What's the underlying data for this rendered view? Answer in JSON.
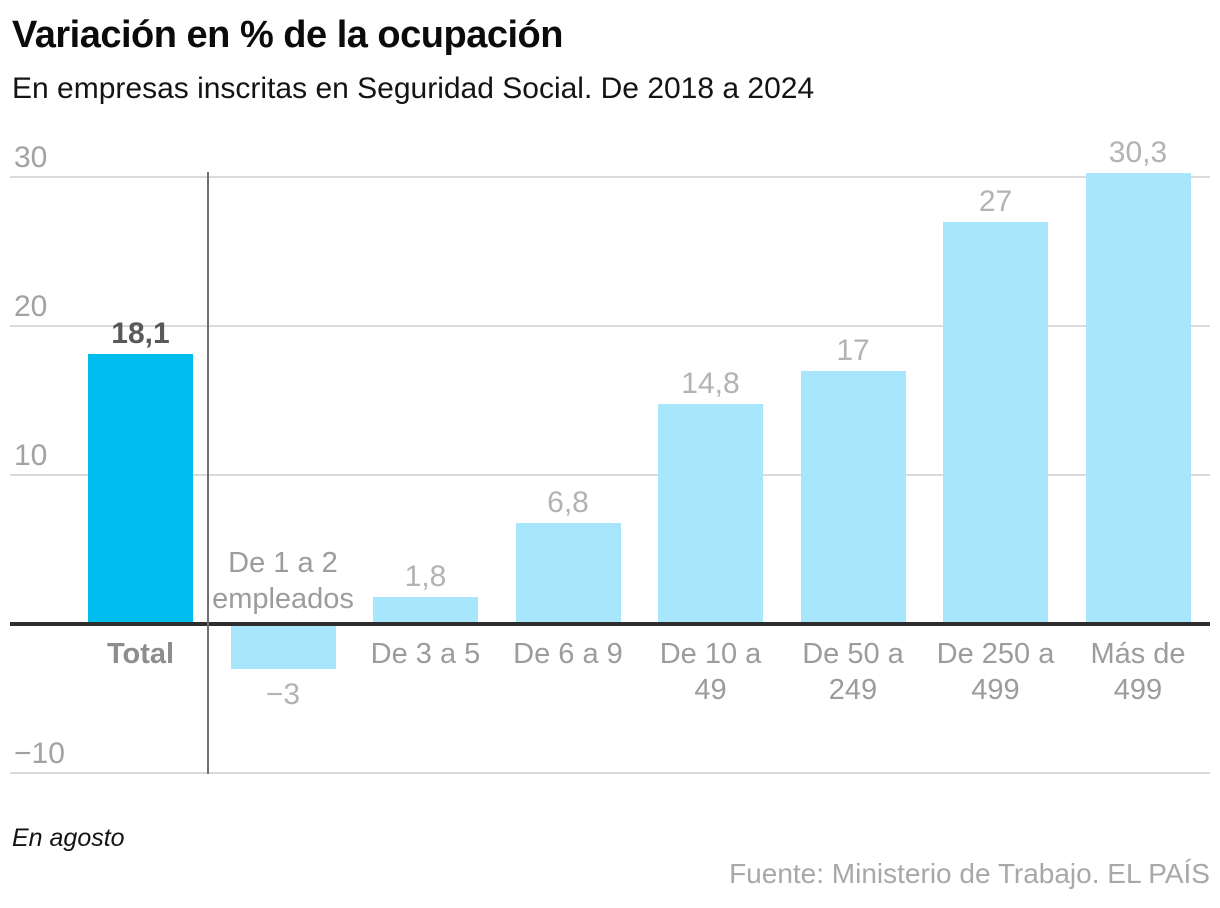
{
  "header": {
    "title": "Variación en % de la ocupación",
    "subtitle": "En empresas inscritas en Seguridad Social. De 2018 a 2024"
  },
  "footer": {
    "note": "En agosto",
    "source": "Fuente: Ministerio de Trabajo. EL PAÍS"
  },
  "chart_data": {
    "type": "bar",
    "title": "Variación en % de la ocupación",
    "subtitle": "En empresas inscritas en Seguridad Social. De 2018 a 2024",
    "categories": [
      "Total",
      "De 1 a 2 empleados",
      "De 3 a 5",
      "De 6 a 9",
      "De 10 a 49",
      "De 50 a 249",
      "De 250 a 499",
      "Más de 499"
    ],
    "category_lines": [
      [
        "Total"
      ],
      [
        "De 1 a 2",
        "empleados"
      ],
      [
        "De 3 a 5"
      ],
      [
        "De 6 a 9"
      ],
      [
        "De 10 a",
        "49"
      ],
      [
        "De 50 a",
        "249"
      ],
      [
        "De 250 a",
        "499"
      ],
      [
        "Más de",
        "499"
      ]
    ],
    "values": [
      18.1,
      -3,
      1.8,
      6.8,
      14.8,
      17,
      27,
      30.3
    ],
    "value_labels": [
      "18,1",
      "−3",
      "1,8",
      "6,8",
      "14,8",
      "17",
      "27",
      "30,3"
    ],
    "highlight_category": "Total",
    "yticks": [
      30,
      20,
      10,
      -10
    ],
    "ytick_labels": [
      "30",
      "20",
      "10",
      "−10"
    ],
    "ylim": [
      -10,
      32
    ],
    "grid": true,
    "legend": false,
    "unit": "%",
    "colors": {
      "highlight_bar": "#00bdf0",
      "regular_bar": "#a8e6fb",
      "gridline": "#dbdbdb",
      "zero_line": "#2d2d2d",
      "divider_line": "#707070",
      "tick_label": "#a2a2a2",
      "value_label": "#b3b3b3",
      "highlight_value_label": "#595959",
      "category_label": "#9c9c9c"
    }
  }
}
